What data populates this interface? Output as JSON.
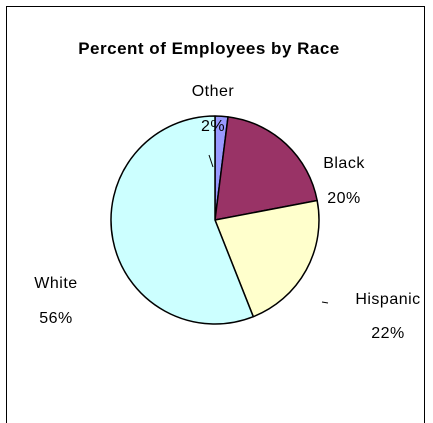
{
  "chart_data": {
    "type": "pie",
    "title": "Percent of Employees by Race",
    "slices": [
      {
        "label": "Other",
        "value": 2,
        "display": "2%",
        "color": "#9999FF"
      },
      {
        "label": "Black",
        "value": 20,
        "display": "20%",
        "color": "#993366"
      },
      {
        "label": "Hispanic",
        "value": 22,
        "display": "22%",
        "color": "#FFFFCC"
      },
      {
        "label": "White",
        "value": 56,
        "display": "56%",
        "color": "#CCFFFF"
      }
    ],
    "legend": "none",
    "start_angle_degrees": 0,
    "direction": "clockwise"
  }
}
